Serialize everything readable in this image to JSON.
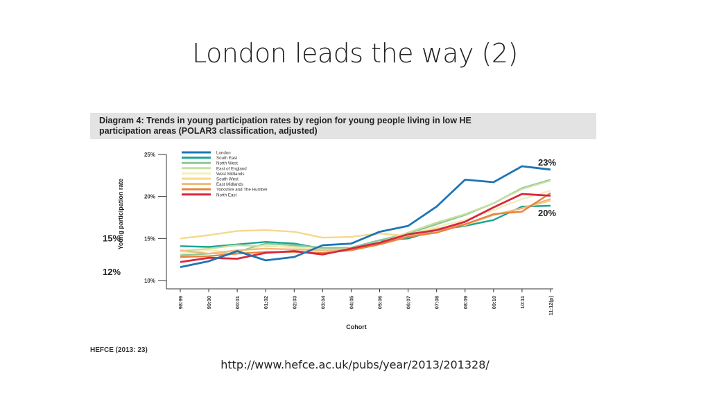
{
  "slide": {
    "title": "London leads the way (2)",
    "source": "HEFCE (2013: 23)",
    "url": "http://www.hefce.ac.uk/pubs/year/2013/201328/"
  },
  "caption": {
    "lead": "Diagram 4:",
    "line1": " Trends in young participation rates by region for young people living in low HE",
    "line2": "participation areas (POLAR3 classification, adjusted)"
  },
  "chart_data": {
    "type": "line",
    "categories": [
      "98:99",
      "99:00",
      "00:01",
      "01:02",
      "02:03",
      "03:04",
      "04:05",
      "05:06",
      "06:07",
      "07:08",
      "08:09",
      "09:10",
      "10:11",
      "11:12(p)"
    ],
    "xlabel": "Cohort",
    "ylabel": "Young participation rate",
    "ylim": [
      10,
      25
    ],
    "yticks": [
      "10%",
      "15%",
      "20%",
      "25%"
    ],
    "yticks_values": [
      10,
      15,
      20,
      25
    ],
    "grid": false,
    "legend_position": "top-left",
    "annotations": [
      {
        "text": "15%",
        "x": "98:99",
        "y": 15,
        "side": "left"
      },
      {
        "text": "12%",
        "x": "98:99",
        "y": 11,
        "side": "left"
      },
      {
        "text": "23%",
        "x": "11:12(p)",
        "y": 24,
        "side": "right"
      },
      {
        "text": "20%",
        "x": "11:12(p)",
        "y": 18,
        "side": "right"
      }
    ],
    "series": [
      {
        "name": "London",
        "color": "#1f74b5",
        "values": [
          11.6,
          12.3,
          13.5,
          12.4,
          12.8,
          14.2,
          14.4,
          15.8,
          16.5,
          18.8,
          22.0,
          21.7,
          23.6,
          23.2
        ]
      },
      {
        "name": "South East",
        "color": "#1aa392",
        "values": [
          14.1,
          14.0,
          14.3,
          14.6,
          14.4,
          13.8,
          13.9,
          14.8,
          15.0,
          16.0,
          16.5,
          17.2,
          18.8,
          18.9
        ]
      },
      {
        "name": "North West",
        "color": "#8cc89a",
        "values": [
          13.0,
          13.2,
          13.4,
          14.4,
          14.2,
          13.9,
          13.9,
          14.8,
          15.6,
          16.7,
          17.8,
          19.2,
          21.0,
          22.0
        ]
      },
      {
        "name": "East of England",
        "color": "#c7df9e",
        "values": [
          13.5,
          13.8,
          14.2,
          14.1,
          14.0,
          13.6,
          13.8,
          14.5,
          15.7,
          16.9,
          17.9,
          19.2,
          20.9,
          21.9
        ]
      },
      {
        "name": "West Midlands",
        "color": "#f3eebb",
        "values": [
          13.2,
          13.6,
          13.3,
          14.2,
          13.9,
          13.7,
          13.7,
          14.3,
          15.4,
          16.4,
          17.2,
          18.4,
          19.7,
          20.7
        ]
      },
      {
        "name": "South West",
        "color": "#f4d98c",
        "values": [
          15.0,
          15.4,
          15.9,
          16.0,
          15.8,
          15.1,
          15.2,
          15.6,
          15.3,
          16.2,
          16.6,
          17.8,
          18.6,
          19.5
        ]
      },
      {
        "name": "East Midlands",
        "color": "#f1b97a",
        "values": [
          13.6,
          13.2,
          13.6,
          13.8,
          13.7,
          13.6,
          13.7,
          14.4,
          15.2,
          16.0,
          16.7,
          17.8,
          18.6,
          19.7
        ]
      },
      {
        "name": "Yorkshire and The Humber",
        "color": "#e8823f",
        "values": [
          12.8,
          12.9,
          13.2,
          13.4,
          13.4,
          13.3,
          13.6,
          14.3,
          15.2,
          15.7,
          16.7,
          17.9,
          18.2,
          20.4
        ]
      },
      {
        "name": "North East",
        "color": "#d8273f",
        "values": [
          12.2,
          12.7,
          12.6,
          13.3,
          13.5,
          13.1,
          13.8,
          14.5,
          15.5,
          16.0,
          17.0,
          18.7,
          20.3,
          20.1
        ]
      }
    ]
  }
}
